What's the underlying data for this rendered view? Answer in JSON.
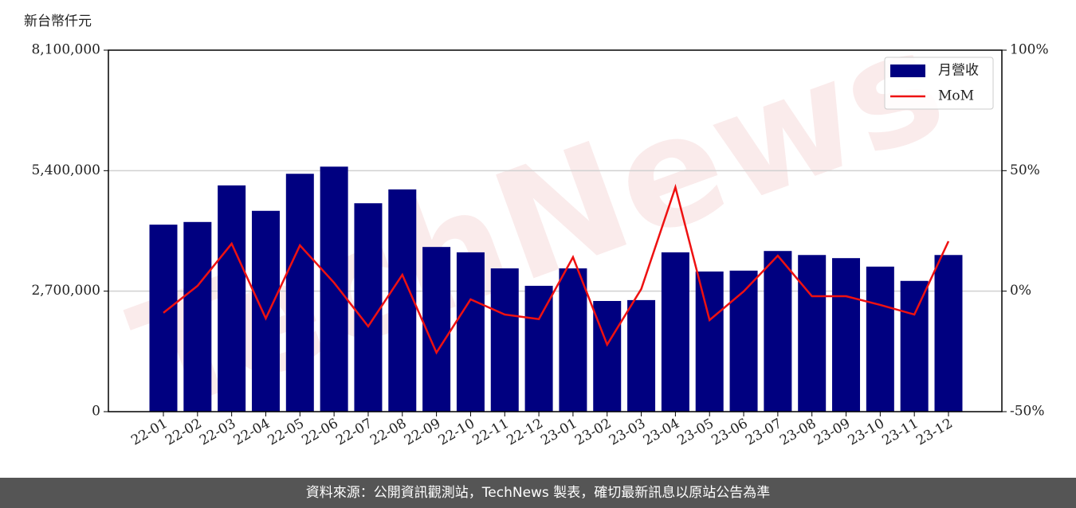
{
  "chart_data": {
    "type": "bar-line",
    "watermark": "TechNews",
    "unit_label": "新台幣仟元",
    "footer": "資料來源：公開資訊觀測站，TechNews 製表，確切最新訊息以原站公告為準",
    "categories": [
      "22-01",
      "22-02",
      "22-03",
      "22-04",
      "22-05",
      "22-06",
      "22-07",
      "22-08",
      "22-09",
      "22-10",
      "22-11",
      "22-12",
      "23-01",
      "23-02",
      "23-03",
      "23-04",
      "23-05",
      "23-06",
      "23-07",
      "23-08",
      "23-09",
      "23-10",
      "23-11",
      "23-12"
    ],
    "series": [
      {
        "name": "月營收",
        "type": "bar",
        "color": "#000080",
        "values": [
          4190000,
          4250000,
          5070000,
          4500000,
          5330000,
          5490000,
          4670000,
          4980000,
          3690000,
          3570000,
          3210000,
          2820000,
          3210000,
          2480000,
          2500000,
          3570000,
          3140000,
          3160000,
          3600000,
          3510000,
          3440000,
          3250000,
          2930000,
          3510000
        ]
      },
      {
        "name": "MoM",
        "type": "line",
        "axis": "y2",
        "color": "#ee1111",
        "values": [
          -9.0,
          2.2,
          19.7,
          -11.3,
          19.0,
          3.5,
          -14.6,
          6.8,
          -25.5,
          -3.4,
          -9.7,
          -11.6,
          14.1,
          -22.2,
          0.9,
          43.1,
          -12.0,
          -0.1,
          14.7,
          -2.1,
          -2.1,
          -5.7,
          -9.7,
          20.7
        ]
      }
    ],
    "ylim": [
      0,
      8100000
    ],
    "yticks": [
      0,
      {
        "value": 2700000,
        "label": "2,700,000"
      },
      {
        "value": 5400000,
        "label": "5,400,000"
      },
      {
        "value": 8100000,
        "label": "8,100,000"
      }
    ],
    "y2lim": [
      -50,
      100
    ],
    "y2ticks": [
      {
        "value": -50,
        "label": "-50%"
      },
      {
        "value": 0,
        "label": "0%"
      },
      {
        "value": 50,
        "label": "50%"
      },
      {
        "value": 100,
        "label": "100%"
      }
    ],
    "grid": true,
    "legend": "upper right"
  }
}
